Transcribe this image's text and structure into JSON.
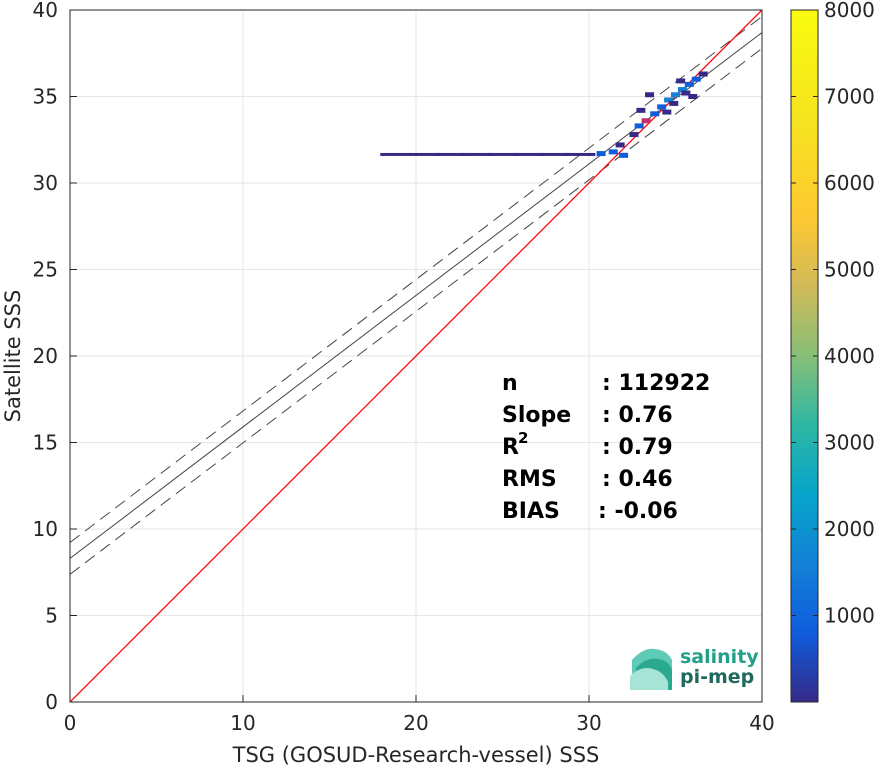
{
  "chart_data": {
    "type": "scatter",
    "subtype": "density-scatter",
    "title": "",
    "xlabel": "TSG (GOSUD-Research-vessel) SSS",
    "ylabel": "Satellite SSS",
    "xlim": [
      0,
      40
    ],
    "ylim": [
      0,
      40
    ],
    "xticks": [
      "0",
      "10",
      "20",
      "30",
      "40"
    ],
    "yticks": [
      "0",
      "5",
      "10",
      "15",
      "20",
      "25",
      "30",
      "35",
      "40"
    ],
    "grid": true,
    "lines": {
      "identity": {
        "slope": 1,
        "intercept": 0,
        "color": "#ff0000"
      },
      "fit": {
        "slope": 0.76,
        "intercept": 8.3,
        "color": "#444444"
      },
      "fit_upper": {
        "slope": 0.76,
        "intercept": 9.22,
        "color": "#444444",
        "style": "dashed"
      },
      "fit_lower": {
        "slope": 0.76,
        "intercept": 7.38,
        "color": "#444444",
        "style": "dashed"
      }
    },
    "density_points": [
      {
        "x": 18.8,
        "y": 31.65,
        "count": 150
      },
      {
        "x": 20.5,
        "y": 31.65,
        "count": 200
      },
      {
        "x": 22.0,
        "y": 31.65,
        "count": 250
      },
      {
        "x": 23.5,
        "y": 31.65,
        "count": 300
      },
      {
        "x": 25.0,
        "y": 31.65,
        "count": 400
      },
      {
        "x": 26.5,
        "y": 31.65,
        "count": 500
      },
      {
        "x": 28.0,
        "y": 31.65,
        "count": 550
      },
      {
        "x": 29.5,
        "y": 31.65,
        "count": 650
      },
      {
        "x": 30.7,
        "y": 31.7,
        "count": 900
      },
      {
        "x": 31.4,
        "y": 31.8,
        "count": 1100
      },
      {
        "x": 32.0,
        "y": 31.6,
        "count": 800
      },
      {
        "x": 31.8,
        "y": 32.2,
        "count": 600
      },
      {
        "x": 32.6,
        "y": 32.8,
        "count": 700
      },
      {
        "x": 32.9,
        "y": 33.3,
        "count": 900
      },
      {
        "x": 33.3,
        "y": 33.6,
        "count": 1300
      },
      {
        "x": 33.8,
        "y": 34.0,
        "count": 1500
      },
      {
        "x": 34.2,
        "y": 34.4,
        "count": 1400
      },
      {
        "x": 34.6,
        "y": 34.8,
        "count": 1700
      },
      {
        "x": 35.0,
        "y": 35.1,
        "count": 1900
      },
      {
        "x": 35.4,
        "y": 35.4,
        "count": 1600
      },
      {
        "x": 35.8,
        "y": 35.7,
        "count": 1200
      },
      {
        "x": 36.2,
        "y": 36.0,
        "count": 1000
      },
      {
        "x": 36.6,
        "y": 36.3,
        "count": 700
      },
      {
        "x": 34.9,
        "y": 34.6,
        "count": 500
      },
      {
        "x": 35.6,
        "y": 35.2,
        "count": 600
      },
      {
        "x": 35.3,
        "y": 35.9,
        "count": 400
      },
      {
        "x": 36.0,
        "y": 35.0,
        "count": 300
      },
      {
        "x": 33.0,
        "y": 34.2,
        "count": 300
      },
      {
        "x": 33.5,
        "y": 35.1,
        "count": 200
      },
      {
        "x": 34.5,
        "y": 34.1,
        "count": 350
      }
    ],
    "colorbar": {
      "min": 0,
      "max": 8000,
      "ticks": [
        "1000",
        "2000",
        "3000",
        "4000",
        "5000",
        "6000",
        "7000",
        "8000"
      ],
      "colormap": "parula"
    },
    "annotations": [
      {
        "label": "n",
        "value": ": 112922"
      },
      {
        "label": "Slope",
        "value": ": 0.76"
      },
      {
        "label": "R",
        "sup": "2",
        "value": ": 0.79"
      },
      {
        "label": "RMS",
        "value": ": 0.46"
      },
      {
        "label": "BIAS",
        "value": ": -0.06"
      }
    ]
  },
  "logo": {
    "line1": "salinity",
    "line2": "pi-mep"
  }
}
